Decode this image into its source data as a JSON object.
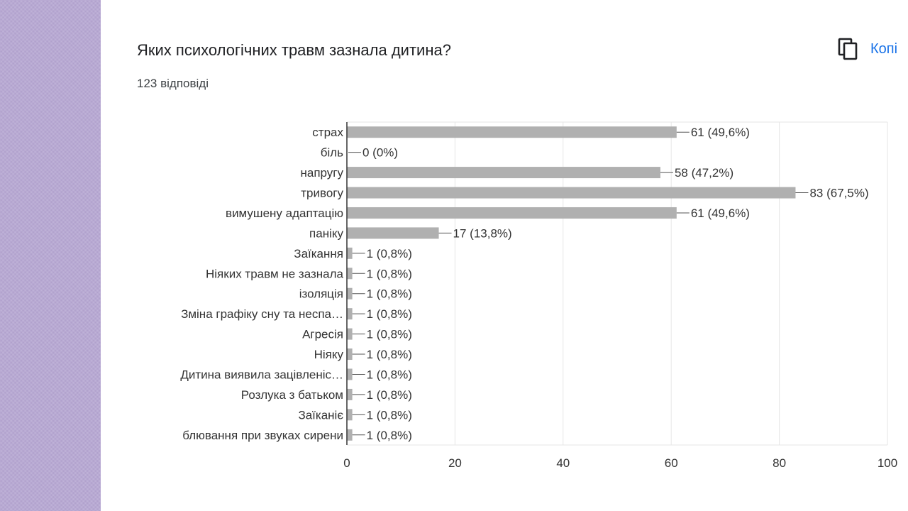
{
  "question": {
    "title": "Яких психологічних травм зазнала дитина?",
    "responses": "123 відповіді"
  },
  "toolbar": {
    "copy_label": "Копі",
    "copy_icon": "copy-icon"
  },
  "colors": {
    "bar": "#b0b0b0",
    "axis": "#333333",
    "grid": "#e6e6e6",
    "text": "#333333",
    "link": "#1a73e8"
  },
  "chart_data": {
    "type": "bar",
    "orientation": "horizontal",
    "categories": [
      "страх",
      "біль",
      "напругу",
      "тривогу",
      "вимушену адаптацію",
      "паніку",
      "Заїкання",
      "Ніяких травм не зазнала",
      "ізоляція",
      "Зміна графіку сну та неспа…",
      "Агресія",
      "Ніяку",
      "Дитина виявила зацівленіс…",
      "Розлука з батьком",
      "Заїканіє",
      "блювання при звуках сирени"
    ],
    "values": [
      61,
      0,
      58,
      83,
      61,
      17,
      1,
      1,
      1,
      1,
      1,
      1,
      1,
      1,
      1,
      1
    ],
    "data_labels": [
      "61 (49,6%)",
      "0 (0%)",
      "58 (47,2%)",
      "83 (67,5%)",
      "61 (49,6%)",
      "17 (13,8%)",
      "1 (0,8%)",
      "1 (0,8%)",
      "1 (0,8%)",
      "1 (0,8%)",
      "1 (0,8%)",
      "1 (0,8%)",
      "1 (0,8%)",
      "1 (0,8%)",
      "1 (0,8%)",
      "1 (0,8%)"
    ],
    "xlim": [
      0,
      100
    ],
    "xticks": [
      0,
      20,
      40,
      60,
      80,
      100
    ],
    "grid": true
  }
}
